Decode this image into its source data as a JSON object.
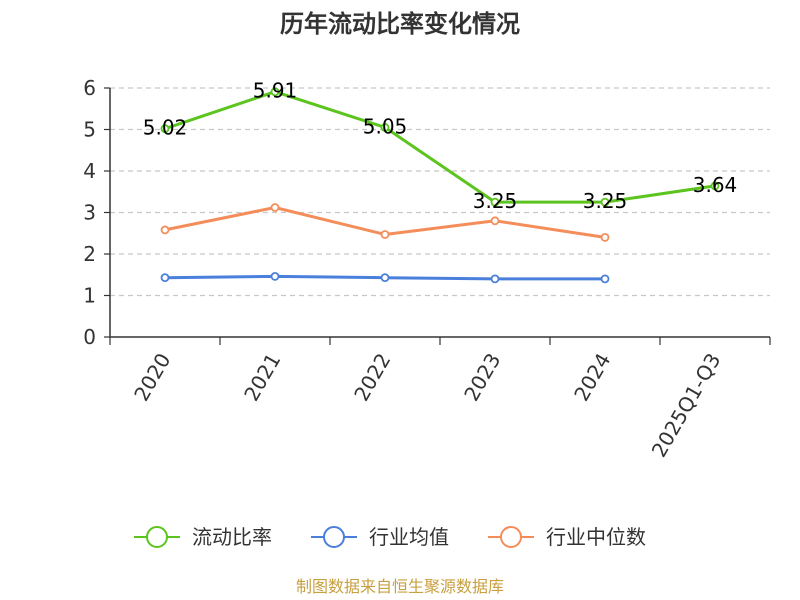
{
  "chart_data": {
    "type": "line",
    "title": "历年流动比率变化情况",
    "categories": [
      "2020",
      "2021",
      "2022",
      "2023",
      "2024",
      "2025Q1-Q3"
    ],
    "ylim": [
      0,
      6
    ],
    "yticks": [
      0,
      1,
      2,
      3,
      4,
      5,
      6
    ],
    "grid": true,
    "legend_position": "bottom",
    "series": [
      {
        "name": "流动比率",
        "color": "#5cc41e",
        "values": [
          5.02,
          5.91,
          5.05,
          3.25,
          3.25,
          3.64
        ],
        "labels": [
          "5.02",
          "5.91",
          "5.05",
          "3.25",
          "3.25",
          "3.64"
        ]
      },
      {
        "name": "行业均值",
        "color": "#4a7fdc",
        "values": [
          1.43,
          1.46,
          1.43,
          1.4,
          1.4,
          null
        ]
      },
      {
        "name": "行业中位数",
        "color": "#f48d5a",
        "values": [
          2.58,
          3.12,
          2.47,
          2.8,
          2.4,
          null
        ]
      }
    ]
  },
  "source": "制图数据来自恒生聚源数据库"
}
